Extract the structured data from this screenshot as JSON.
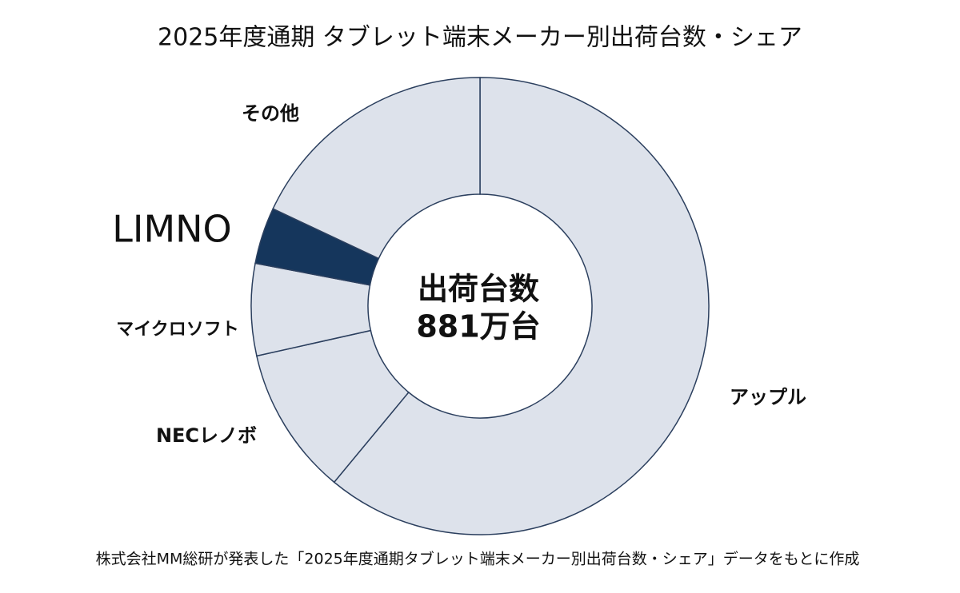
{
  "chart_data": {
    "type": "donut",
    "title": "2025年度通期 タブレット端末メーカー別出荷台数・シェア",
    "categories": [
      "アップル",
      "NECレノボ",
      "マイクロソフト",
      "LIMNO",
      "その他"
    ],
    "values": [
      61,
      10.5,
      6.5,
      4,
      18
    ],
    "colors": [
      "#dde2eb",
      "#dde2eb",
      "#dde2eb",
      "#15365c",
      "#dde2eb"
    ],
    "center_text": [
      "出荷台数",
      "881万台"
    ],
    "note": "株式会社MM総研が発表した「2025年度通期タブレット端末メーカー別出荷台数・シェア」データをもとに作成"
  }
}
